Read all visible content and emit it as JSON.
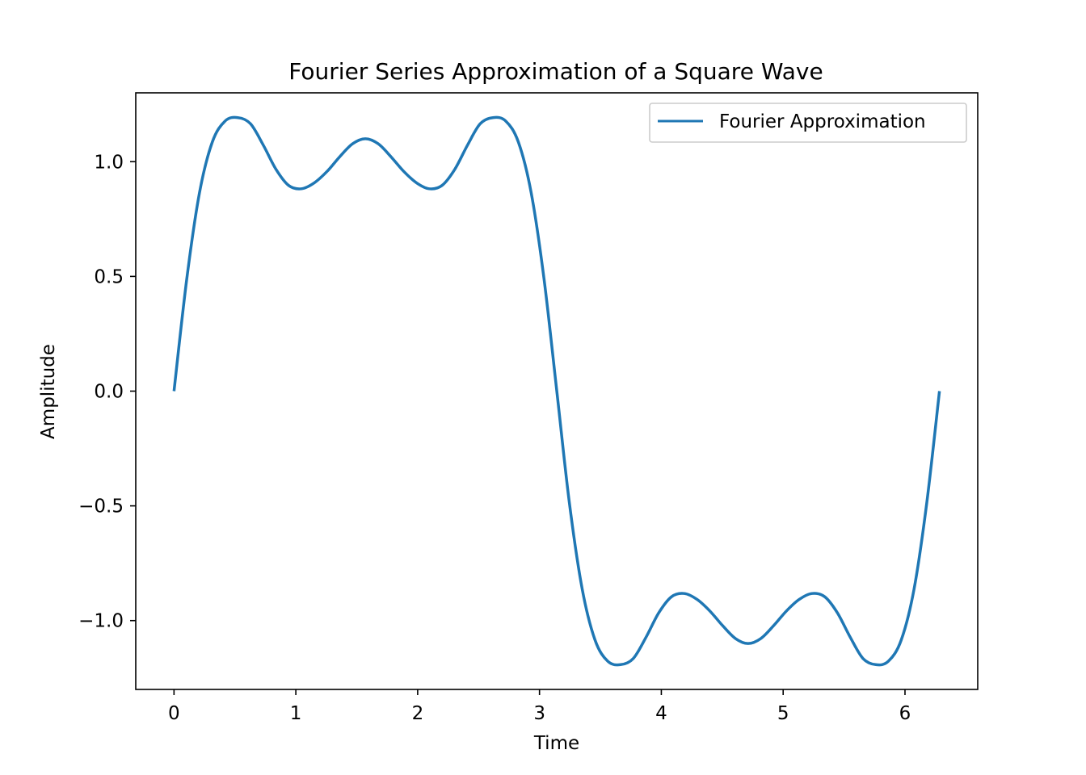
{
  "chart_data": {
    "type": "line",
    "title": "Fourier Series Approximation of a Square Wave",
    "xlabel": "Time",
    "ylabel": "Amplitude",
    "xlim": [
      -0.314,
      6.597
    ],
    "ylim": [
      -1.3,
      1.3
    ],
    "xticks": [
      0,
      1,
      2,
      3,
      4,
      5,
      6
    ],
    "xtick_labels": [
      "0",
      "1",
      "2",
      "3",
      "4",
      "5",
      "6"
    ],
    "yticks": [
      -1.0,
      -0.5,
      0.0,
      0.5,
      1.0
    ],
    "ytick_labels": [
      "−1.0",
      "−0.5",
      "0.0",
      "0.5",
      "1.0"
    ],
    "grid": false,
    "legend_position": "top-right",
    "series": [
      {
        "name": "Fourier Approximation",
        "color": "#1f77b4",
        "x": [
          0.0,
          0.105,
          0.209,
          0.314,
          0.419,
          0.524,
          0.628,
          0.733,
          0.838,
          0.942,
          1.047,
          1.152,
          1.257,
          1.361,
          1.466,
          1.571,
          1.676,
          1.78,
          1.885,
          1.99,
          2.094,
          2.199,
          2.304,
          2.409,
          2.513,
          2.618,
          2.723,
          2.827,
          2.932,
          3.037,
          3.142,
          3.246,
          3.351,
          3.456,
          3.56,
          3.665,
          3.77,
          3.875,
          3.979,
          4.084,
          4.189,
          4.294,
          4.398,
          4.503,
          4.608,
          4.712,
          4.817,
          4.922,
          5.027,
          5.131,
          5.236,
          5.341,
          5.445,
          5.55,
          5.655,
          5.76,
          5.864,
          5.969,
          6.074,
          6.178,
          6.283
        ],
        "y": [
          0.0,
          0.49,
          0.864,
          1.085,
          1.177,
          1.192,
          1.165,
          1.072,
          0.966,
          0.896,
          0.882,
          0.908,
          0.958,
          1.022,
          1.078,
          1.1,
          1.078,
          1.022,
          0.958,
          0.908,
          0.882,
          0.896,
          0.966,
          1.072,
          1.165,
          1.192,
          1.177,
          1.085,
          0.864,
          0.49,
          0.0,
          -0.49,
          -0.864,
          -1.085,
          -1.177,
          -1.192,
          -1.165,
          -1.072,
          -0.966,
          -0.896,
          -0.882,
          -0.908,
          -0.958,
          -1.022,
          -1.078,
          -1.1,
          -1.078,
          -1.022,
          -0.958,
          -0.908,
          -0.882,
          -0.896,
          -0.966,
          -1.072,
          -1.165,
          -1.192,
          -1.177,
          -1.085,
          -0.864,
          -0.49,
          0.0
        ]
      }
    ]
  }
}
